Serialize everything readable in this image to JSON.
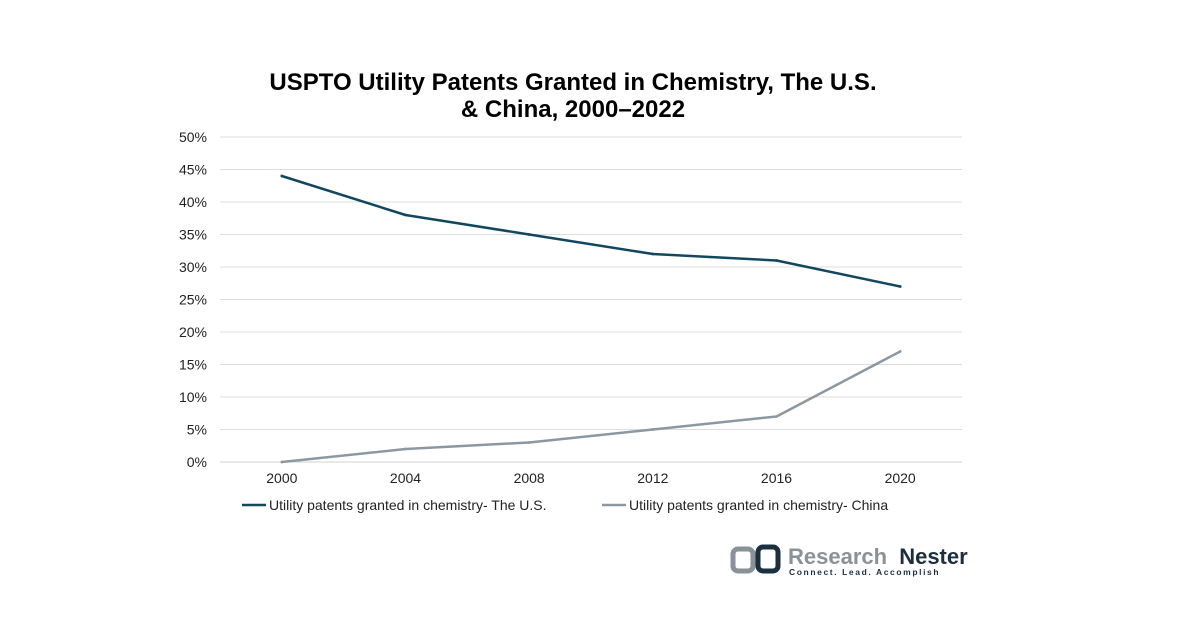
{
  "chart_data": {
    "type": "line",
    "title_lines": [
      "USPTO Utility Patents Granted in Chemistry, The U.S.",
      "& China, 2000–2022"
    ],
    "xlabel": "",
    "ylabel": "",
    "categories": [
      "2000",
      "2004",
      "2008",
      "2012",
      "2016",
      "2020"
    ],
    "y_ticks": [
      0,
      5,
      10,
      15,
      20,
      25,
      30,
      35,
      40,
      45,
      50
    ],
    "y_tick_labels": [
      "0%",
      "5%",
      "10%",
      "15%",
      "20%",
      "25%",
      "30%",
      "35%",
      "40%",
      "45%",
      "50%"
    ],
    "ylim": [
      0,
      50
    ],
    "unit": "%",
    "grid": true,
    "legend_position": "bottom",
    "series": [
      {
        "name": "Utility patents granted in chemistry- The U.S.",
        "color": "#12475e",
        "values": [
          44,
          38,
          35,
          32,
          31,
          27
        ]
      },
      {
        "name": "Utility patents granted in chemistry- China",
        "color": "#8c98a1",
        "values": [
          0,
          2,
          3,
          5,
          7,
          17
        ]
      }
    ]
  },
  "branding": {
    "name_part1": "Research",
    "name_part2": "Nester",
    "tagline": "Connect. Lead. Accomplish",
    "logo_icon": "research-nester-logo-icon",
    "color_dark": "#1b2f3e",
    "color_gray": "#8a9298"
  }
}
